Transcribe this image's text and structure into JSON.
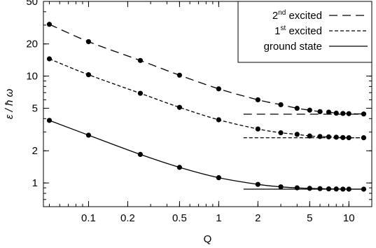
{
  "chart_data": {
    "type": "line",
    "xlabel": "Q",
    "ylabel": "ε / ħ ω",
    "xscale": "log",
    "yscale": "log",
    "xlim": [
      0.045,
      15.0
    ],
    "ylim": [
      0.6,
      50
    ],
    "xticks": [
      {
        "value": 0.1,
        "label": "0.1"
      },
      {
        "value": 0.2,
        "label": "0.2"
      },
      {
        "value": 0.5,
        "label": "0.5"
      },
      {
        "value": 1,
        "label": "1"
      },
      {
        "value": 2,
        "label": "2"
      },
      {
        "value": 5,
        "label": "5"
      },
      {
        "value": 10,
        "label": "10"
      }
    ],
    "yticks": [
      {
        "value": 1,
        "label": "1"
      },
      {
        "value": 2,
        "label": "2"
      },
      {
        "value": 5,
        "label": "5"
      },
      {
        "value": 10,
        "label": "10"
      },
      {
        "value": 20,
        "label": "20"
      },
      {
        "value": 50,
        "label": "50"
      }
    ],
    "grid": false,
    "legend": {
      "position": "top-right",
      "entries": [
        {
          "key": "second",
          "label_main": "2",
          "label_sup": "nd",
          "label_rest": " excited",
          "dash": "long-dash"
        },
        {
          "key": "first",
          "label_main": "1",
          "label_sup": "st",
          "label_rest": " excited",
          "dash": "short-dash"
        },
        {
          "key": "ground",
          "label_main": "ground state",
          "label_sup": "",
          "label_rest": "",
          "dash": "solid"
        }
      ]
    },
    "series": [
      {
        "key": "second",
        "dash": "long-dash",
        "x": [
          0.05,
          0.1,
          0.25,
          0.5,
          1,
          2,
          3,
          4,
          5,
          6,
          7,
          8,
          9,
          10,
          13
        ],
        "y": [
          30.5,
          21.0,
          14.0,
          10.2,
          7.6,
          6.0,
          5.4,
          5.0,
          4.8,
          4.65,
          4.6,
          4.5,
          4.47,
          4.45,
          4.42
        ],
        "asymptote": {
          "y": 4.4,
          "x_from": 1.55,
          "x_to": 13
        }
      },
      {
        "key": "first",
        "dash": "short-dash",
        "x": [
          0.05,
          0.1,
          0.25,
          0.5,
          1,
          2,
          3,
          4,
          5,
          6,
          7,
          8,
          9,
          10,
          13
        ],
        "y": [
          14.5,
          10.3,
          6.9,
          5.1,
          3.9,
          3.2,
          2.95,
          2.85,
          2.75,
          2.72,
          2.7,
          2.68,
          2.66,
          2.65,
          2.65
        ],
        "asymptote": {
          "y": 2.65,
          "x_from": 1.55,
          "x_to": 13
        }
      },
      {
        "key": "ground",
        "dash": "solid",
        "x": [
          0.05,
          0.1,
          0.25,
          0.5,
          1,
          2,
          3,
          4,
          5,
          6,
          7,
          8,
          9,
          10,
          13
        ],
        "y": [
          3.85,
          2.8,
          1.85,
          1.4,
          1.12,
          0.97,
          0.92,
          0.9,
          0.89,
          0.885,
          0.88,
          0.878,
          0.876,
          0.875,
          0.875
        ],
        "asymptote": {
          "y": 0.875,
          "x_from": 1.55,
          "x_to": 13
        }
      }
    ]
  }
}
